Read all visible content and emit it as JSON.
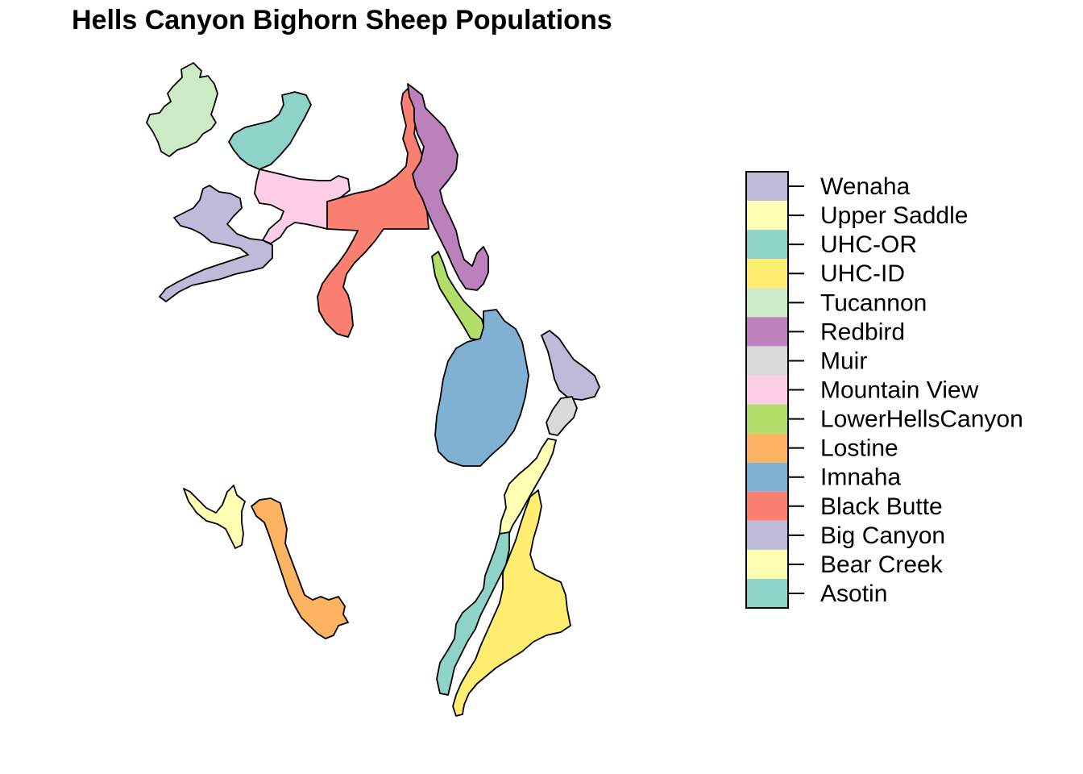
{
  "title": "Hells Canyon Bighorn Sheep Populations",
  "legend": [
    {
      "name": "Wenaha",
      "color": "#BEBADA"
    },
    {
      "name": "Upper Saddle",
      "color": "#FFFFB3"
    },
    {
      "name": "UHC-OR",
      "color": "#8DD3C7"
    },
    {
      "name": "UHC-ID",
      "color": "#FFED6F"
    },
    {
      "name": "Tucannon",
      "color": "#CCEBC5"
    },
    {
      "name": "Redbird",
      "color": "#BC80BD"
    },
    {
      "name": "Muir",
      "color": "#D9D9D9"
    },
    {
      "name": "Mountain View",
      "color": "#FCCDE5"
    },
    {
      "name": "LowerHellsCanyon",
      "color": "#B3DE69"
    },
    {
      "name": "Lostine",
      "color": "#FDB462"
    },
    {
      "name": "Imnaha",
      "color": "#80B1D3"
    },
    {
      "name": "Black Butte",
      "color": "#FB8072"
    },
    {
      "name": "Big Canyon",
      "color": "#BEBADA"
    },
    {
      "name": "Bear Creek",
      "color": "#FFFFB3"
    },
    {
      "name": "Asotin",
      "color": "#8DD3C7"
    }
  ]
}
